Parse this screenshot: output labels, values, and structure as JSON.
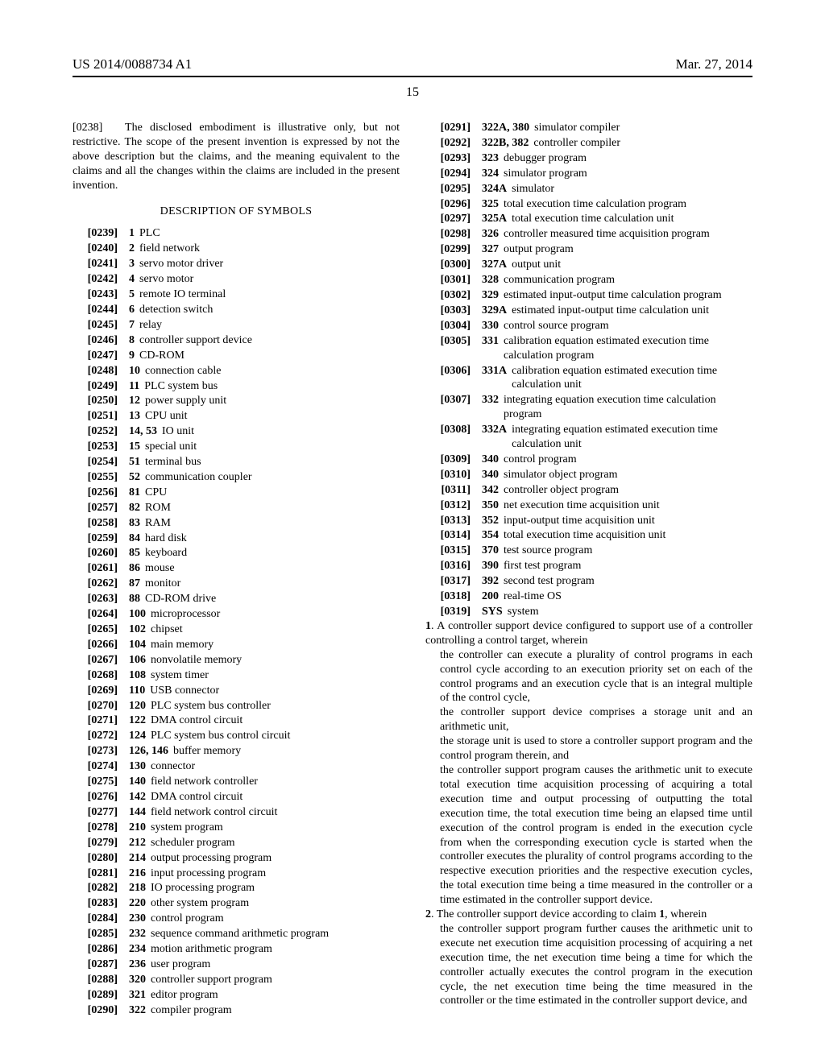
{
  "header": {
    "pub_number": "US 2014/0088734 A1",
    "pub_date": "Mar. 27, 2014",
    "page_number": "15"
  },
  "intro": {
    "pnum": "[0238]",
    "text": "The disclosed embodiment is illustrative only, but not restrictive. The scope of the present invention is expressed by not the above description but the claims, and the meaning equivalent to the claims and all the changes within the claims are included in the present invention."
  },
  "section_title": "DESCRIPTION OF SYMBOLS",
  "symbols": [
    {
      "pnum": "[0239]",
      "num": "1",
      "desc": "PLC"
    },
    {
      "pnum": "[0240]",
      "num": "2",
      "desc": "field network"
    },
    {
      "pnum": "[0241]",
      "num": "3",
      "desc": "servo motor driver"
    },
    {
      "pnum": "[0242]",
      "num": "4",
      "desc": "servo motor"
    },
    {
      "pnum": "[0243]",
      "num": "5",
      "desc": "remote IO terminal"
    },
    {
      "pnum": "[0244]",
      "num": "6",
      "desc": "detection switch"
    },
    {
      "pnum": "[0245]",
      "num": "7",
      "desc": "relay"
    },
    {
      "pnum": "[0246]",
      "num": "8",
      "desc": "controller support device"
    },
    {
      "pnum": "[0247]",
      "num": "9",
      "desc": "CD-ROM"
    },
    {
      "pnum": "[0248]",
      "num": "10",
      "desc": "connection cable"
    },
    {
      "pnum": "[0249]",
      "num": "11",
      "desc": "PLC system bus"
    },
    {
      "pnum": "[0250]",
      "num": "12",
      "desc": "power supply unit"
    },
    {
      "pnum": "[0251]",
      "num": "13",
      "desc": "CPU unit"
    },
    {
      "pnum": "[0252]",
      "num": "14, 53",
      "desc": "IO unit"
    },
    {
      "pnum": "[0253]",
      "num": "15",
      "desc": "special unit"
    },
    {
      "pnum": "[0254]",
      "num": "51",
      "desc": "terminal bus"
    },
    {
      "pnum": "[0255]",
      "num": "52",
      "desc": "communication coupler"
    },
    {
      "pnum": "[0256]",
      "num": "81",
      "desc": "CPU"
    },
    {
      "pnum": "[0257]",
      "num": "82",
      "desc": "ROM"
    },
    {
      "pnum": "[0258]",
      "num": "83",
      "desc": "RAM"
    },
    {
      "pnum": "[0259]",
      "num": "84",
      "desc": "hard disk"
    },
    {
      "pnum": "[0260]",
      "num": "85",
      "desc": "keyboard"
    },
    {
      "pnum": "[0261]",
      "num": "86",
      "desc": "mouse"
    },
    {
      "pnum": "[0262]",
      "num": "87",
      "desc": "monitor"
    },
    {
      "pnum": "[0263]",
      "num": "88",
      "desc": "CD-ROM drive"
    },
    {
      "pnum": "[0264]",
      "num": "100",
      "desc": "microprocessor"
    },
    {
      "pnum": "[0265]",
      "num": "102",
      "desc": "chipset"
    },
    {
      "pnum": "[0266]",
      "num": "104",
      "desc": "main memory"
    },
    {
      "pnum": "[0267]",
      "num": "106",
      "desc": "nonvolatile memory"
    },
    {
      "pnum": "[0268]",
      "num": "108",
      "desc": "system timer"
    },
    {
      "pnum": "[0269]",
      "num": "110",
      "desc": "USB connector"
    },
    {
      "pnum": "[0270]",
      "num": "120",
      "desc": "PLC system bus controller"
    },
    {
      "pnum": "[0271]",
      "num": "122",
      "desc": "DMA control circuit"
    },
    {
      "pnum": "[0272]",
      "num": "124",
      "desc": "PLC system bus control circuit"
    },
    {
      "pnum": "[0273]",
      "num": "126, 146",
      "desc": "buffer memory"
    },
    {
      "pnum": "[0274]",
      "num": "130",
      "desc": "connector"
    },
    {
      "pnum": "[0275]",
      "num": "140",
      "desc": "field network controller"
    },
    {
      "pnum": "[0276]",
      "num": "142",
      "desc": "DMA control circuit"
    },
    {
      "pnum": "[0277]",
      "num": "144",
      "desc": "field network control circuit"
    },
    {
      "pnum": "[0278]",
      "num": "210",
      "desc": "system program"
    },
    {
      "pnum": "[0279]",
      "num": "212",
      "desc": "scheduler program"
    },
    {
      "pnum": "[0280]",
      "num": "214",
      "desc": "output processing program"
    },
    {
      "pnum": "[0281]",
      "num": "216",
      "desc": "input processing program"
    },
    {
      "pnum": "[0282]",
      "num": "218",
      "desc": "IO processing program"
    },
    {
      "pnum": "[0283]",
      "num": "220",
      "desc": "other system program"
    },
    {
      "pnum": "[0284]",
      "num": "230",
      "desc": "control program"
    },
    {
      "pnum": "[0285]",
      "num": "232",
      "desc": "sequence command arithmetic program"
    },
    {
      "pnum": "[0286]",
      "num": "234",
      "desc": "motion arithmetic program"
    },
    {
      "pnum": "[0287]",
      "num": "236",
      "desc": "user program"
    },
    {
      "pnum": "[0288]",
      "num": "320",
      "desc": "controller support program"
    },
    {
      "pnum": "[0289]",
      "num": "321",
      "desc": "editor program"
    },
    {
      "pnum": "[0290]",
      "num": "322",
      "desc": "compiler program"
    },
    {
      "pnum": "[0291]",
      "num": "322A, 380",
      "desc": "simulator compiler"
    },
    {
      "pnum": "[0292]",
      "num": "322B, 382",
      "desc": "controller compiler"
    },
    {
      "pnum": "[0293]",
      "num": "323",
      "desc": "debugger program"
    },
    {
      "pnum": "[0294]",
      "num": "324",
      "desc": "simulator program"
    },
    {
      "pnum": "[0295]",
      "num": "324A",
      "desc": "simulator"
    },
    {
      "pnum": "[0296]",
      "num": "325",
      "desc": "total execution time calculation program"
    },
    {
      "pnum": "[0297]",
      "num": "325A",
      "desc": "total execution time calculation unit"
    },
    {
      "pnum": "[0298]",
      "num": "326",
      "desc": "controller measured time acquisition program",
      "wrap": true
    },
    {
      "pnum": "[0299]",
      "num": "327",
      "desc": "output program"
    },
    {
      "pnum": "[0300]",
      "num": "327A",
      "desc": "output unit"
    },
    {
      "pnum": "[0301]",
      "num": "328",
      "desc": "communication program"
    },
    {
      "pnum": "[0302]",
      "num": "329",
      "desc": "estimated input-output time calculation program",
      "wrap": true
    },
    {
      "pnum": "[0303]",
      "num": "329A",
      "desc": "estimated input-output time calculation unit",
      "wrap": true
    },
    {
      "pnum": "[0304]",
      "num": "330",
      "desc": "control source program"
    },
    {
      "pnum": "[0305]",
      "num": "331",
      "desc": "calibration equation estimated execution time calculation program",
      "wrap": true
    },
    {
      "pnum": "[0306]",
      "num": "331A",
      "desc": "calibration equation estimated execution time calculation unit",
      "wrap": true
    },
    {
      "pnum": "[0307]",
      "num": "332",
      "desc": "integrating equation execution time calculation program",
      "wrap": true
    },
    {
      "pnum": "[0308]",
      "num": "332A",
      "desc": "integrating equation estimated execution time calculation unit",
      "wrap": true
    },
    {
      "pnum": "[0309]",
      "num": "340",
      "desc": "control program"
    },
    {
      "pnum": "[0310]",
      "num": "340",
      "desc": "simulator object program"
    },
    {
      "pnum": "[0311]",
      "num": "342",
      "desc": "controller object program"
    },
    {
      "pnum": "[0312]",
      "num": "350",
      "desc": "net execution time acquisition unit"
    },
    {
      "pnum": "[0313]",
      "num": "352",
      "desc": "input-output time acquisition unit"
    },
    {
      "pnum": "[0314]",
      "num": "354",
      "desc": "total execution time acquisition unit"
    },
    {
      "pnum": "[0315]",
      "num": "370",
      "desc": "test source program"
    },
    {
      "pnum": "[0316]",
      "num": "390",
      "desc": "first test program"
    },
    {
      "pnum": "[0317]",
      "num": "392",
      "desc": "second test program"
    },
    {
      "pnum": "[0318]",
      "num": "200",
      "desc": "real-time OS"
    },
    {
      "pnum": "[0319]",
      "num": "SYS",
      "desc": "system"
    }
  ],
  "claims": {
    "c1_num": "1",
    "c1_lead": ". A controller support device configured to support use of a controller controlling a control target, wherein",
    "c1_sub1": "the controller can execute a plurality of control programs in each control cycle according to an execution priority set on each of the control programs and an execution cycle that is an integral multiple of the control cycle,",
    "c1_sub2": "the controller support device comprises a storage unit and an arithmetic unit,",
    "c1_sub3": "the storage unit is used to store a controller support program and the control program therein, and",
    "c1_sub4": "the controller support program causes the arithmetic unit to execute total execution time acquisition processing of acquiring a total execution time and output processing of outputting the total execution time, the total execution time being an elapsed time until execution of the control program is ended in the execution cycle from when the corresponding execution cycle is started when the controller executes the plurality of control programs according to the respective execution priorities and the respective execution cycles, the total execution time being a time measured in the controller or a time estimated in the controller support device.",
    "c2_num": "2",
    "c2_lead_a": ". The controller support device according to claim ",
    "c2_lead_b": "1",
    "c2_lead_c": ", wherein",
    "c2_sub1": "the controller support program further causes the arithmetic unit to execute net execution time acquisition processing of acquiring a net execution time, the net execution time being a time for which the controller actually executes the control program in the execution cycle, the net execution time being the time measured in the controller or the time estimated in the controller support device, and"
  }
}
